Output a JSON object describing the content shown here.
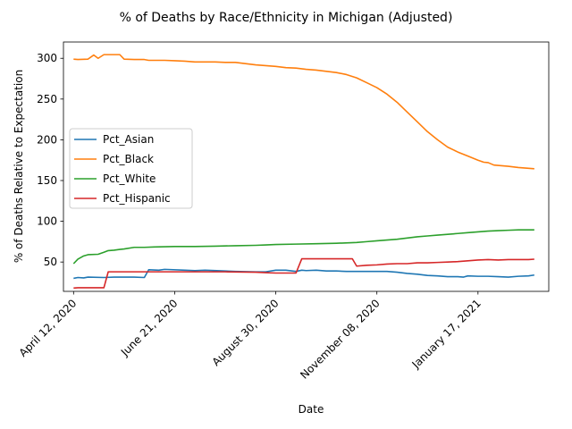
{
  "chart_data": {
    "type": "line",
    "title": "% of Deaths by Race/Ethnicity in Michigan (Adjusted)",
    "xlabel": "Date",
    "ylabel": "% of Deaths Relative to Expectation",
    "x_start": "2020-04-12",
    "x_tick_labels": [
      "April 12, 2020",
      "June 21, 2020",
      "August 30, 2020",
      "November 08, 2020",
      "January 17, 2021"
    ],
    "x_ticks": [
      "2020-04-12",
      "2020-06-21",
      "2020-08-30",
      "2020-11-08",
      "2021-01-17"
    ],
    "x_range": [
      "2020-04-05",
      "2021-03-07"
    ],
    "ylim": [
      14,
      320
    ],
    "y_ticks": [
      50,
      100,
      150,
      200,
      250,
      300
    ],
    "legend_position": "center-left",
    "grid": false,
    "series": [
      {
        "name": "Pct_Asian",
        "color": "#1f77b4",
        "points": [
          [
            "2020-04-12",
            30
          ],
          [
            "2020-04-15",
            31
          ],
          [
            "2020-04-19",
            30.5
          ],
          [
            "2020-04-22",
            31.5
          ],
          [
            "2020-05-03",
            31
          ],
          [
            "2020-05-10",
            31.5
          ],
          [
            "2020-05-24",
            31.5
          ],
          [
            "2020-05-31",
            31
          ],
          [
            "2020-06-03",
            40.5
          ],
          [
            "2020-06-10",
            40
          ],
          [
            "2020-06-14",
            41
          ],
          [
            "2020-06-28",
            40
          ],
          [
            "2020-07-05",
            39.5
          ],
          [
            "2020-07-12",
            40
          ],
          [
            "2020-07-26",
            39
          ],
          [
            "2020-08-02",
            38.5
          ],
          [
            "2020-08-16",
            38
          ],
          [
            "2020-08-23",
            38
          ],
          [
            "2020-08-30",
            40
          ],
          [
            "2020-09-06",
            40
          ],
          [
            "2020-09-13",
            38.5
          ],
          [
            "2020-09-17",
            40
          ],
          [
            "2020-09-20",
            39.5
          ],
          [
            "2020-09-27",
            40
          ],
          [
            "2020-10-04",
            39
          ],
          [
            "2020-10-11",
            39
          ],
          [
            "2020-10-18",
            38.5
          ],
          [
            "2020-10-25",
            38.5
          ],
          [
            "2020-11-01",
            38.5
          ],
          [
            "2020-11-08",
            38.5
          ],
          [
            "2020-11-15",
            38.5
          ],
          [
            "2020-11-22",
            37.5
          ],
          [
            "2020-11-29",
            36
          ],
          [
            "2020-12-06",
            35
          ],
          [
            "2020-12-13",
            33.5
          ],
          [
            "2020-12-20",
            33
          ],
          [
            "2020-12-27",
            32
          ],
          [
            "2021-01-03",
            32
          ],
          [
            "2021-01-07",
            31.5
          ],
          [
            "2021-01-10",
            33
          ],
          [
            "2021-01-17",
            32.5
          ],
          [
            "2021-01-24",
            32.5
          ],
          [
            "2021-01-31",
            32
          ],
          [
            "2021-02-07",
            31.5
          ],
          [
            "2021-02-14",
            32.5
          ],
          [
            "2021-02-21",
            33
          ],
          [
            "2021-02-25",
            34
          ]
        ]
      },
      {
        "name": "Pct_Black",
        "color": "#ff7f0e",
        "points": [
          [
            "2020-04-12",
            299
          ],
          [
            "2020-04-15",
            298.5
          ],
          [
            "2020-04-22",
            299
          ],
          [
            "2020-04-26",
            304
          ],
          [
            "2020-04-29",
            300
          ],
          [
            "2020-05-03",
            304.5
          ],
          [
            "2020-05-10",
            304.5
          ],
          [
            "2020-05-14",
            304.5
          ],
          [
            "2020-05-17",
            299
          ],
          [
            "2020-05-24",
            298.5
          ],
          [
            "2020-05-31",
            298.5
          ],
          [
            "2020-06-03",
            297.5
          ],
          [
            "2020-06-14",
            297.5
          ],
          [
            "2020-06-21",
            297
          ],
          [
            "2020-06-28",
            296.5
          ],
          [
            "2020-07-05",
            295.5
          ],
          [
            "2020-07-19",
            295.5
          ],
          [
            "2020-07-26",
            295
          ],
          [
            "2020-08-02",
            295
          ],
          [
            "2020-08-09",
            293.5
          ],
          [
            "2020-08-16",
            292
          ],
          [
            "2020-08-23",
            291
          ],
          [
            "2020-08-30",
            290
          ],
          [
            "2020-09-06",
            288.5
          ],
          [
            "2020-09-13",
            288
          ],
          [
            "2020-09-20",
            286.5
          ],
          [
            "2020-09-27",
            285.5
          ],
          [
            "2020-10-04",
            284
          ],
          [
            "2020-10-11",
            282.5
          ],
          [
            "2020-10-18",
            280
          ],
          [
            "2020-10-25",
            276
          ],
          [
            "2020-11-01",
            270
          ],
          [
            "2020-11-08",
            264
          ],
          [
            "2020-11-15",
            256
          ],
          [
            "2020-11-22",
            246
          ],
          [
            "2020-11-29",
            234
          ],
          [
            "2020-12-06",
            222
          ],
          [
            "2020-12-13",
            210
          ],
          [
            "2020-12-20",
            200
          ],
          [
            "2020-12-27",
            191
          ],
          [
            "2021-01-03",
            185
          ],
          [
            "2021-01-10",
            180
          ],
          [
            "2021-01-17",
            175
          ],
          [
            "2021-01-21",
            172.5
          ],
          [
            "2021-01-24",
            172
          ],
          [
            "2021-01-28",
            169
          ],
          [
            "2021-02-07",
            167.5
          ],
          [
            "2021-02-14",
            166
          ],
          [
            "2021-02-21",
            165
          ],
          [
            "2021-02-25",
            164.5
          ]
        ]
      },
      {
        "name": "Pct_White",
        "color": "#2ca02c",
        "points": [
          [
            "2020-04-12",
            48
          ],
          [
            "2020-04-15",
            53.5
          ],
          [
            "2020-04-19",
            57.5
          ],
          [
            "2020-04-22",
            59
          ],
          [
            "2020-04-29",
            59.5
          ],
          [
            "2020-05-03",
            62
          ],
          [
            "2020-05-06",
            64
          ],
          [
            "2020-05-10",
            64.5
          ],
          [
            "2020-05-14",
            65.5
          ],
          [
            "2020-05-17",
            66
          ],
          [
            "2020-05-24",
            68
          ],
          [
            "2020-05-31",
            68
          ],
          [
            "2020-06-07",
            68.5
          ],
          [
            "2020-06-21",
            69
          ],
          [
            "2020-07-05",
            69
          ],
          [
            "2020-07-19",
            69.5
          ],
          [
            "2020-08-02",
            70
          ],
          [
            "2020-08-16",
            70.5
          ],
          [
            "2020-08-23",
            71
          ],
          [
            "2020-08-30",
            71.5
          ],
          [
            "2020-09-13",
            72
          ],
          [
            "2020-09-27",
            72.5
          ],
          [
            "2020-10-11",
            73
          ],
          [
            "2020-10-25",
            74
          ],
          [
            "2020-11-01",
            75
          ],
          [
            "2020-11-08",
            76
          ],
          [
            "2020-11-15",
            77
          ],
          [
            "2020-11-22",
            78
          ],
          [
            "2020-11-29",
            79.5
          ],
          [
            "2020-12-06",
            81
          ],
          [
            "2020-12-13",
            82
          ],
          [
            "2020-12-20",
            83
          ],
          [
            "2020-12-27",
            84
          ],
          [
            "2021-01-03",
            85
          ],
          [
            "2021-01-10",
            86
          ],
          [
            "2021-01-17",
            87
          ],
          [
            "2021-01-24",
            88
          ],
          [
            "2021-01-31",
            88.5
          ],
          [
            "2021-02-07",
            89
          ],
          [
            "2021-02-14",
            89.5
          ],
          [
            "2021-02-25",
            89.5
          ]
        ]
      },
      {
        "name": "Pct_Hispanic",
        "color": "#d62728",
        "points": [
          [
            "2020-04-12",
            18
          ],
          [
            "2020-04-15",
            18.5
          ],
          [
            "2020-04-22",
            18.5
          ],
          [
            "2020-05-03",
            18.5
          ],
          [
            "2020-05-06",
            38
          ],
          [
            "2020-05-31",
            38
          ],
          [
            "2020-06-28",
            38
          ],
          [
            "2020-07-26",
            38
          ],
          [
            "2020-08-16",
            37.5
          ],
          [
            "2020-08-23",
            37
          ],
          [
            "2020-08-30",
            36.5
          ],
          [
            "2020-09-13",
            36.5
          ],
          [
            "2020-09-17",
            54
          ],
          [
            "2020-09-20",
            54
          ],
          [
            "2020-10-04",
            54
          ],
          [
            "2020-10-11",
            54
          ],
          [
            "2020-10-22",
            54
          ],
          [
            "2020-10-25",
            45
          ],
          [
            "2020-11-01",
            46
          ],
          [
            "2020-11-08",
            46.5
          ],
          [
            "2020-11-15",
            47.5
          ],
          [
            "2020-11-22",
            48
          ],
          [
            "2020-11-29",
            48
          ],
          [
            "2020-12-06",
            49
          ],
          [
            "2020-12-13",
            49
          ],
          [
            "2020-12-20",
            49.5
          ],
          [
            "2020-12-27",
            50
          ],
          [
            "2021-01-03",
            50.5
          ],
          [
            "2021-01-10",
            51.5
          ],
          [
            "2021-01-17",
            52.5
          ],
          [
            "2021-01-24",
            53
          ],
          [
            "2021-01-31",
            52.5
          ],
          [
            "2021-02-07",
            53
          ],
          [
            "2021-02-14",
            53
          ],
          [
            "2021-02-21",
            53
          ],
          [
            "2021-02-25",
            53.5
          ]
        ]
      }
    ]
  }
}
